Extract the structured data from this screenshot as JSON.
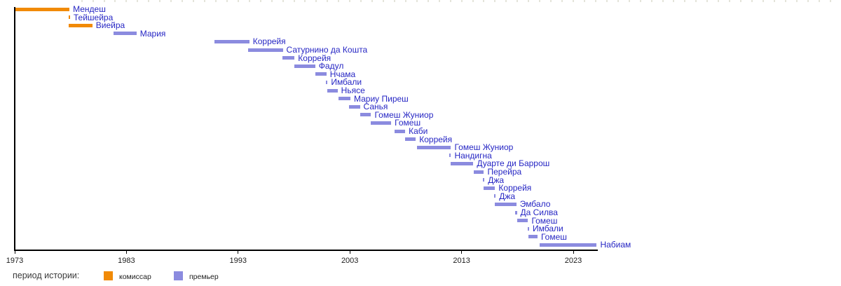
{
  "page": {
    "background": "#ffffff"
  },
  "colors": {
    "komissar": "#f18a06",
    "premier": "#8b8bdf",
    "label_link_blue": "#2626c4",
    "axis": "#000000",
    "tick_label": "#1d1d1d",
    "minor_tick": "#e4e4da"
  },
  "legend": {
    "title": "период истории:",
    "items": [
      {
        "key": "komissar",
        "label": "комиссар",
        "color": "#f18a06"
      },
      {
        "key": "premier",
        "label": "премьер",
        "color": "#8b8bdf"
      }
    ]
  },
  "chart_data": {
    "type": "bar",
    "subtype": "horizontal-timeline-gantt",
    "title": "",
    "xlabel": "",
    "ylabel": "",
    "x_axis": {
      "unit": "year",
      "start_year": 1973,
      "axis_end_year": 2025.2,
      "canvas_end_year": 2047,
      "ticks": [
        1973,
        1983,
        1993,
        2003,
        2013,
        2023
      ],
      "minor_tick_start": 1979,
      "minor_tick_end": 2046,
      "minor_tick_step": 1,
      "grid": false
    },
    "legend_position": "bottom-left",
    "rows": [
      {
        "label": "Мендеш",
        "start": 1973.05,
        "end": 1977.9,
        "type": "komissar"
      },
      {
        "label": "Тейшейра",
        "start": 1977.8,
        "end": 1977.95,
        "type": "komissar"
      },
      {
        "label": "Виейра",
        "start": 1977.85,
        "end": 1979.95,
        "type": "komissar"
      },
      {
        "label": "Мария",
        "start": 1981.85,
        "end": 1983.9,
        "type": "premier"
      },
      {
        "label": "Коррейя",
        "start": 1990.9,
        "end": 1994.0,
        "type": "premier"
      },
      {
        "label": "Сатурнино да Кошта",
        "start": 1993.9,
        "end": 1997.0,
        "type": "premier"
      },
      {
        "label": "Коррейя",
        "start": 1996.95,
        "end": 1998.05,
        "type": "premier"
      },
      {
        "label": "Фадул",
        "start": 1998.05,
        "end": 1999.9,
        "type": "premier"
      },
      {
        "label": "Нчама",
        "start": 1999.9,
        "end": 2000.9,
        "type": "premier"
      },
      {
        "label": "Имбали",
        "start": 2000.85,
        "end": 2001.0,
        "type": "premier"
      },
      {
        "label": "Ньясе",
        "start": 2000.95,
        "end": 2001.9,
        "type": "premier"
      },
      {
        "label": "Мариу Пиреш",
        "start": 2002.0,
        "end": 2003.05,
        "type": "premier"
      },
      {
        "label": "Санья",
        "start": 2002.9,
        "end": 2003.9,
        "type": "premier"
      },
      {
        "label": "Гомеш Жуниор",
        "start": 2003.9,
        "end": 2004.9,
        "type": "premier"
      },
      {
        "label": "Гомеш",
        "start": 2004.9,
        "end": 2006.7,
        "type": "premier"
      },
      {
        "label": "Каби",
        "start": 2007.0,
        "end": 2007.95,
        "type": "premier"
      },
      {
        "label": "Коррейя",
        "start": 2007.95,
        "end": 2008.9,
        "type": "premier"
      },
      {
        "label": "Гомеш Жуниор",
        "start": 2009.0,
        "end": 2012.05,
        "type": "premier"
      },
      {
        "label": "Нандигна",
        "start": 2011.9,
        "end": 2012.05,
        "type": "premier"
      },
      {
        "label": "Дуарте ди Баррош",
        "start": 2012.05,
        "end": 2014.05,
        "type": "premier"
      },
      {
        "label": "Перейра",
        "start": 2014.1,
        "end": 2015.0,
        "type": "premier"
      },
      {
        "label": "Джа",
        "start": 2014.9,
        "end": 2015.05,
        "type": "premier"
      },
      {
        "label": "Коррейя",
        "start": 2015.0,
        "end": 2016.0,
        "type": "premier"
      },
      {
        "label": "Джа",
        "start": 2015.9,
        "end": 2016.05,
        "type": "premier"
      },
      {
        "label": "Эмбало",
        "start": 2016.0,
        "end": 2017.9,
        "type": "premier"
      },
      {
        "label": "Да Силва",
        "start": 2017.8,
        "end": 2017.95,
        "type": "premier"
      },
      {
        "label": "Гомеш",
        "start": 2018.0,
        "end": 2018.95,
        "type": "premier"
      },
      {
        "label": "Имбали",
        "start": 2018.9,
        "end": 2019.05,
        "type": "premier"
      },
      {
        "label": "Гомеш",
        "start": 2019.0,
        "end": 2019.8,
        "type": "premier"
      },
      {
        "label": "Набиам",
        "start": 2020.0,
        "end": 2025.1,
        "type": "premier"
      }
    ]
  }
}
